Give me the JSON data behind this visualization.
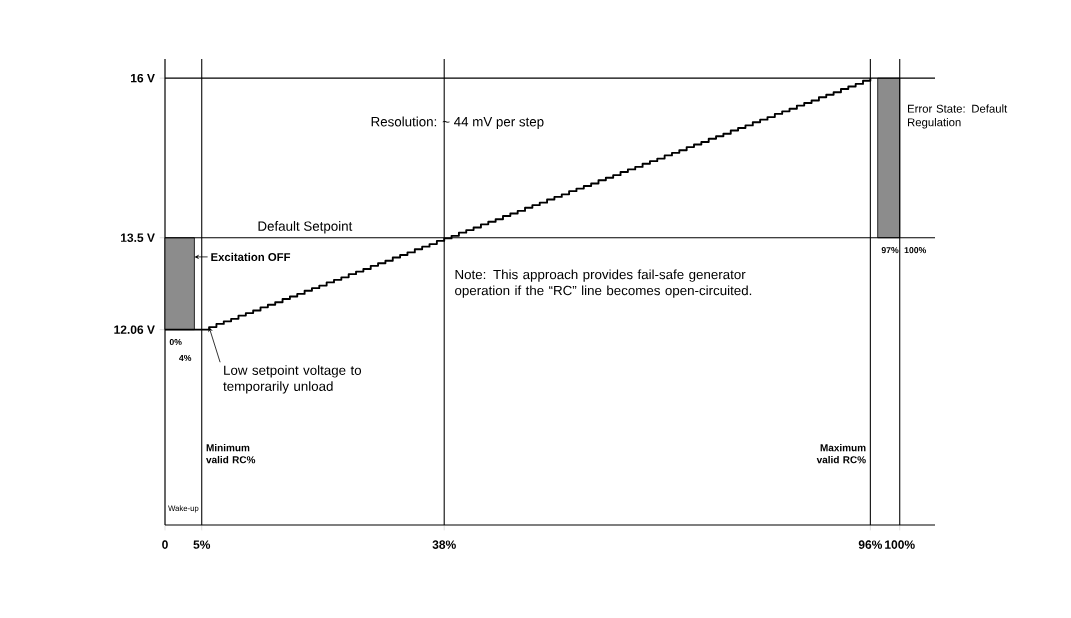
{
  "chart_data": {
    "type": "step",
    "xlim": [
      0,
      104.8
    ],
    "ylim": [
      9,
      16.3
    ],
    "xticks": [
      {
        "value": 0,
        "label": "0"
      },
      {
        "value": 5,
        "label": "5%"
      },
      {
        "value": 38,
        "label": "38%"
      },
      {
        "value": 96,
        "label": "96%"
      },
      {
        "value": 100,
        "label": "100%"
      }
    ],
    "yticks": [
      {
        "value": 12.06,
        "label": "12.06 V"
      },
      {
        "value": 13.5,
        "label": "13.5 V"
      },
      {
        "value": 16,
        "label": "16 V"
      }
    ],
    "series": [
      {
        "type": "bar",
        "color": "#8c8c8c",
        "x": [
          2
        ],
        "values": [
          1.44
        ],
        "base": [
          12.06
        ]
      },
      {
        "type": "bar",
        "color": "#8c8c8c",
        "x": [
          98.5
        ],
        "values": [
          2.5
        ],
        "base": [
          13.5
        ]
      },
      {
        "color": "#000000",
        "x": [
          0,
          5,
          6,
          7,
          8,
          9,
          10,
          11,
          12,
          13,
          14,
          15,
          16,
          17,
          18,
          19,
          20,
          21,
          22,
          23,
          24,
          25,
          26,
          27,
          28,
          29,
          30,
          31,
          32,
          33,
          34,
          35,
          36,
          37,
          38,
          39,
          40,
          41,
          42,
          43,
          44,
          45,
          46,
          47,
          48,
          49,
          50,
          51,
          52,
          53,
          54,
          55,
          56,
          57,
          58,
          59,
          60,
          61,
          62,
          63,
          64,
          65,
          66,
          67,
          68,
          69,
          70,
          71,
          72,
          73,
          74,
          75,
          76,
          77,
          78,
          79,
          80,
          81,
          82,
          83,
          84,
          85,
          86,
          87,
          88,
          89,
          90,
          91,
          92,
          93,
          94,
          95,
          96
        ],
        "values": [
          12.06,
          12.06,
          12.1,
          12.15,
          12.19,
          12.23,
          12.28,
          12.32,
          12.36,
          12.41,
          12.45,
          12.49,
          12.54,
          12.58,
          12.62,
          12.67,
          12.71,
          12.75,
          12.8,
          12.84,
          12.88,
          12.93,
          12.97,
          13.01,
          13.06,
          13.1,
          13.14,
          13.19,
          13.23,
          13.27,
          13.32,
          13.36,
          13.4,
          13.45,
          13.49,
          13.53,
          13.58,
          13.62,
          13.66,
          13.71,
          13.75,
          13.79,
          13.84,
          13.88,
          13.92,
          13.97,
          14.01,
          14.05,
          14.1,
          14.14,
          14.18,
          14.23,
          14.27,
          14.31,
          14.35,
          14.4,
          14.44,
          14.48,
          14.53,
          14.57,
          14.61,
          14.66,
          14.7,
          14.74,
          14.79,
          14.83,
          14.87,
          14.92,
          14.96,
          15.0,
          15.05,
          15.09,
          15.13,
          15.18,
          15.22,
          15.26,
          15.31,
          15.35,
          15.39,
          15.44,
          15.48,
          15.52,
          15.57,
          15.61,
          15.65,
          15.7,
          15.74,
          15.78,
          15.83,
          15.87,
          15.91,
          15.96,
          16.0
        ]
      }
    ],
    "ref_lines": [
      {
        "axis": "y",
        "value": 16
      },
      {
        "axis": "y",
        "value": 13.5,
        "label": "Default  Setpoint"
      },
      {
        "axis": "x",
        "value": 5,
        "label": "Minimum valid RC%"
      },
      {
        "axis": "x",
        "value": 38
      },
      {
        "axis": "x",
        "value": 96,
        "label": "Maximum valid RC%"
      },
      {
        "axis": "x",
        "value": 100
      }
    ],
    "annotations": [
      {
        "text": "Excitation OFF",
        "x": 4,
        "y": 13.2
      },
      {
        "text": "Error State: Default Regulation",
        "x": 100,
        "y": 15.4
      },
      "Resolution: ~ 44 mV per step",
      {
        "text": "Low setpoint voltage to temporarily unload",
        "x": 6,
        "y": 12.1
      },
      "Note:  This approach provides fail-safe generator operation if the “RC” line becomes open-circuited.",
      "Wake-up",
      {
        "text": "0%",
        "x": 0,
        "y": 12.06
      },
      {
        "text": "4%",
        "x": 4,
        "y": 12.06
      },
      {
        "text": "97%",
        "x": 97,
        "y": 13.5
      },
      {
        "text": "100%",
        "x": 100,
        "y": 13.5
      }
    ]
  }
}
